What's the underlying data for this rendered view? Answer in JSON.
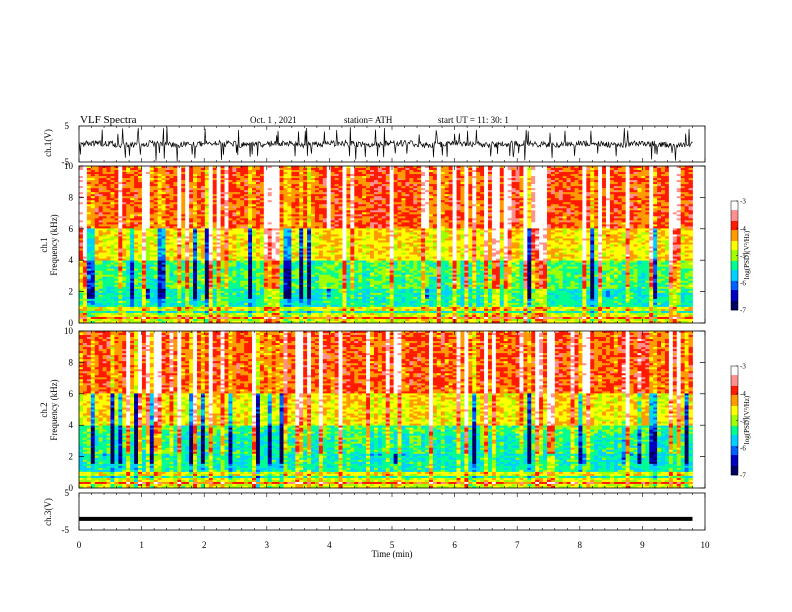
{
  "header": {
    "title": "VLF  Spectra",
    "date": "Oct. 1  , 2021",
    "station": "station= ATH",
    "start": "start  UT  =    11: 30: 1"
  },
  "chart_data": [
    {
      "type": "line",
      "name": "ch1-time-series",
      "ylabel": "ch.1(V)",
      "ylim": [
        -5,
        5
      ],
      "y_ticks": [
        "5",
        "-5"
      ],
      "x_range_min": [
        0,
        9.8
      ],
      "baseline_v": 0,
      "typical_amplitude_v": 1.2,
      "burst_amplitude_v": 4.8
    },
    {
      "type": "heatmap",
      "name": "ch1-spectrogram",
      "ylabel": [
        "ch.1",
        "Frequency  (kHz)"
      ],
      "ylim_khz": [
        0,
        10
      ],
      "y_ticks": [
        "10",
        "8",
        "6",
        "4",
        "2",
        "0"
      ],
      "x_range_min": [
        0,
        9.8
      ],
      "colorbar": {
        "label": "log(PSD)(V²/Hz)",
        "range": [
          -7,
          -3
        ],
        "ticks": [
          "-3",
          "-4",
          "-5",
          "-6",
          "-7"
        ]
      }
    },
    {
      "type": "heatmap",
      "name": "ch2-spectrogram",
      "ylabel": [
        "ch.2",
        "Frequency  (kHz)"
      ],
      "ylim_khz": [
        0,
        10
      ],
      "y_ticks": [
        "10",
        "8",
        "6",
        "4",
        "2",
        "0"
      ],
      "x_range_min": [
        0,
        9.8
      ],
      "colorbar": {
        "label": "log(PSD)(V²/Hz)",
        "range": [
          -7,
          -3
        ],
        "ticks": [
          "-3",
          "-4",
          "-5",
          "-6",
          "-7"
        ]
      }
    },
    {
      "type": "line",
      "name": "ch3-time-series",
      "ylabel": "ch.3(V)",
      "ylim": [
        -5,
        5
      ],
      "y_ticks": [
        "5",
        "-5"
      ],
      "x_range_min": [
        0,
        9.8
      ],
      "constant_level_v": -2
    }
  ],
  "x_axis": {
    "label": "Time  (min)",
    "range": [
      0,
      10
    ],
    "ticks": [
      "0",
      "1",
      "2",
      "3",
      "4",
      "5",
      "6",
      "7",
      "8",
      "9",
      "10"
    ]
  },
  "colors": {
    "jet": [
      "#000000",
      "#0000a8",
      "#0050ff",
      "#00c8ff",
      "#00ff80",
      "#7cff00",
      "#ffff00",
      "#ffa000",
      "#ff2000",
      "#ff8080",
      "#ffffff"
    ]
  }
}
